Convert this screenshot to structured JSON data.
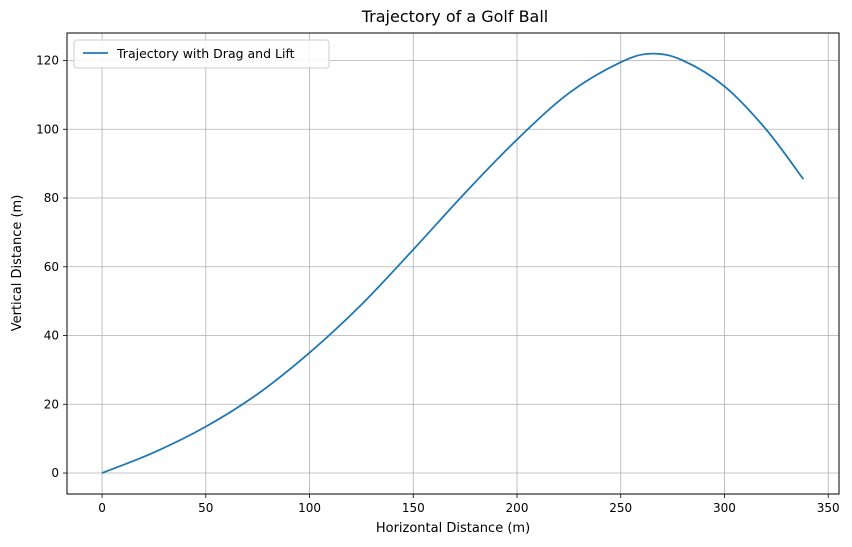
{
  "chart_data": {
    "type": "line",
    "title": "Trajectory of a Golf Ball",
    "xlabel": "Horizontal Distance (m)",
    "ylabel": "Vertical Distance (m)",
    "xlim": [
      -16.9,
      355.2
    ],
    "ylim": [
      -6.1,
      128.0
    ],
    "xticks": [
      0,
      50,
      100,
      150,
      200,
      250,
      300,
      350
    ],
    "yticks": [
      0,
      20,
      40,
      60,
      80,
      100,
      120
    ],
    "grid": true,
    "legend": {
      "placement": "top-left"
    },
    "line_color": "#1f77b4",
    "series": [
      {
        "name": "Trajectory with Drag and Lift",
        "x": [
          0,
          25,
          50,
          75,
          100,
          125,
          150,
          175,
          200,
          225,
          250,
          265,
          280,
          300,
          320,
          338
        ],
        "y": [
          0,
          6.0,
          13.5,
          23.0,
          35.0,
          49.0,
          65.0,
          81.5,
          97.0,
          110.5,
          119.5,
          122.0,
          120.0,
          112.5,
          100.0,
          85.5
        ]
      }
    ]
  }
}
